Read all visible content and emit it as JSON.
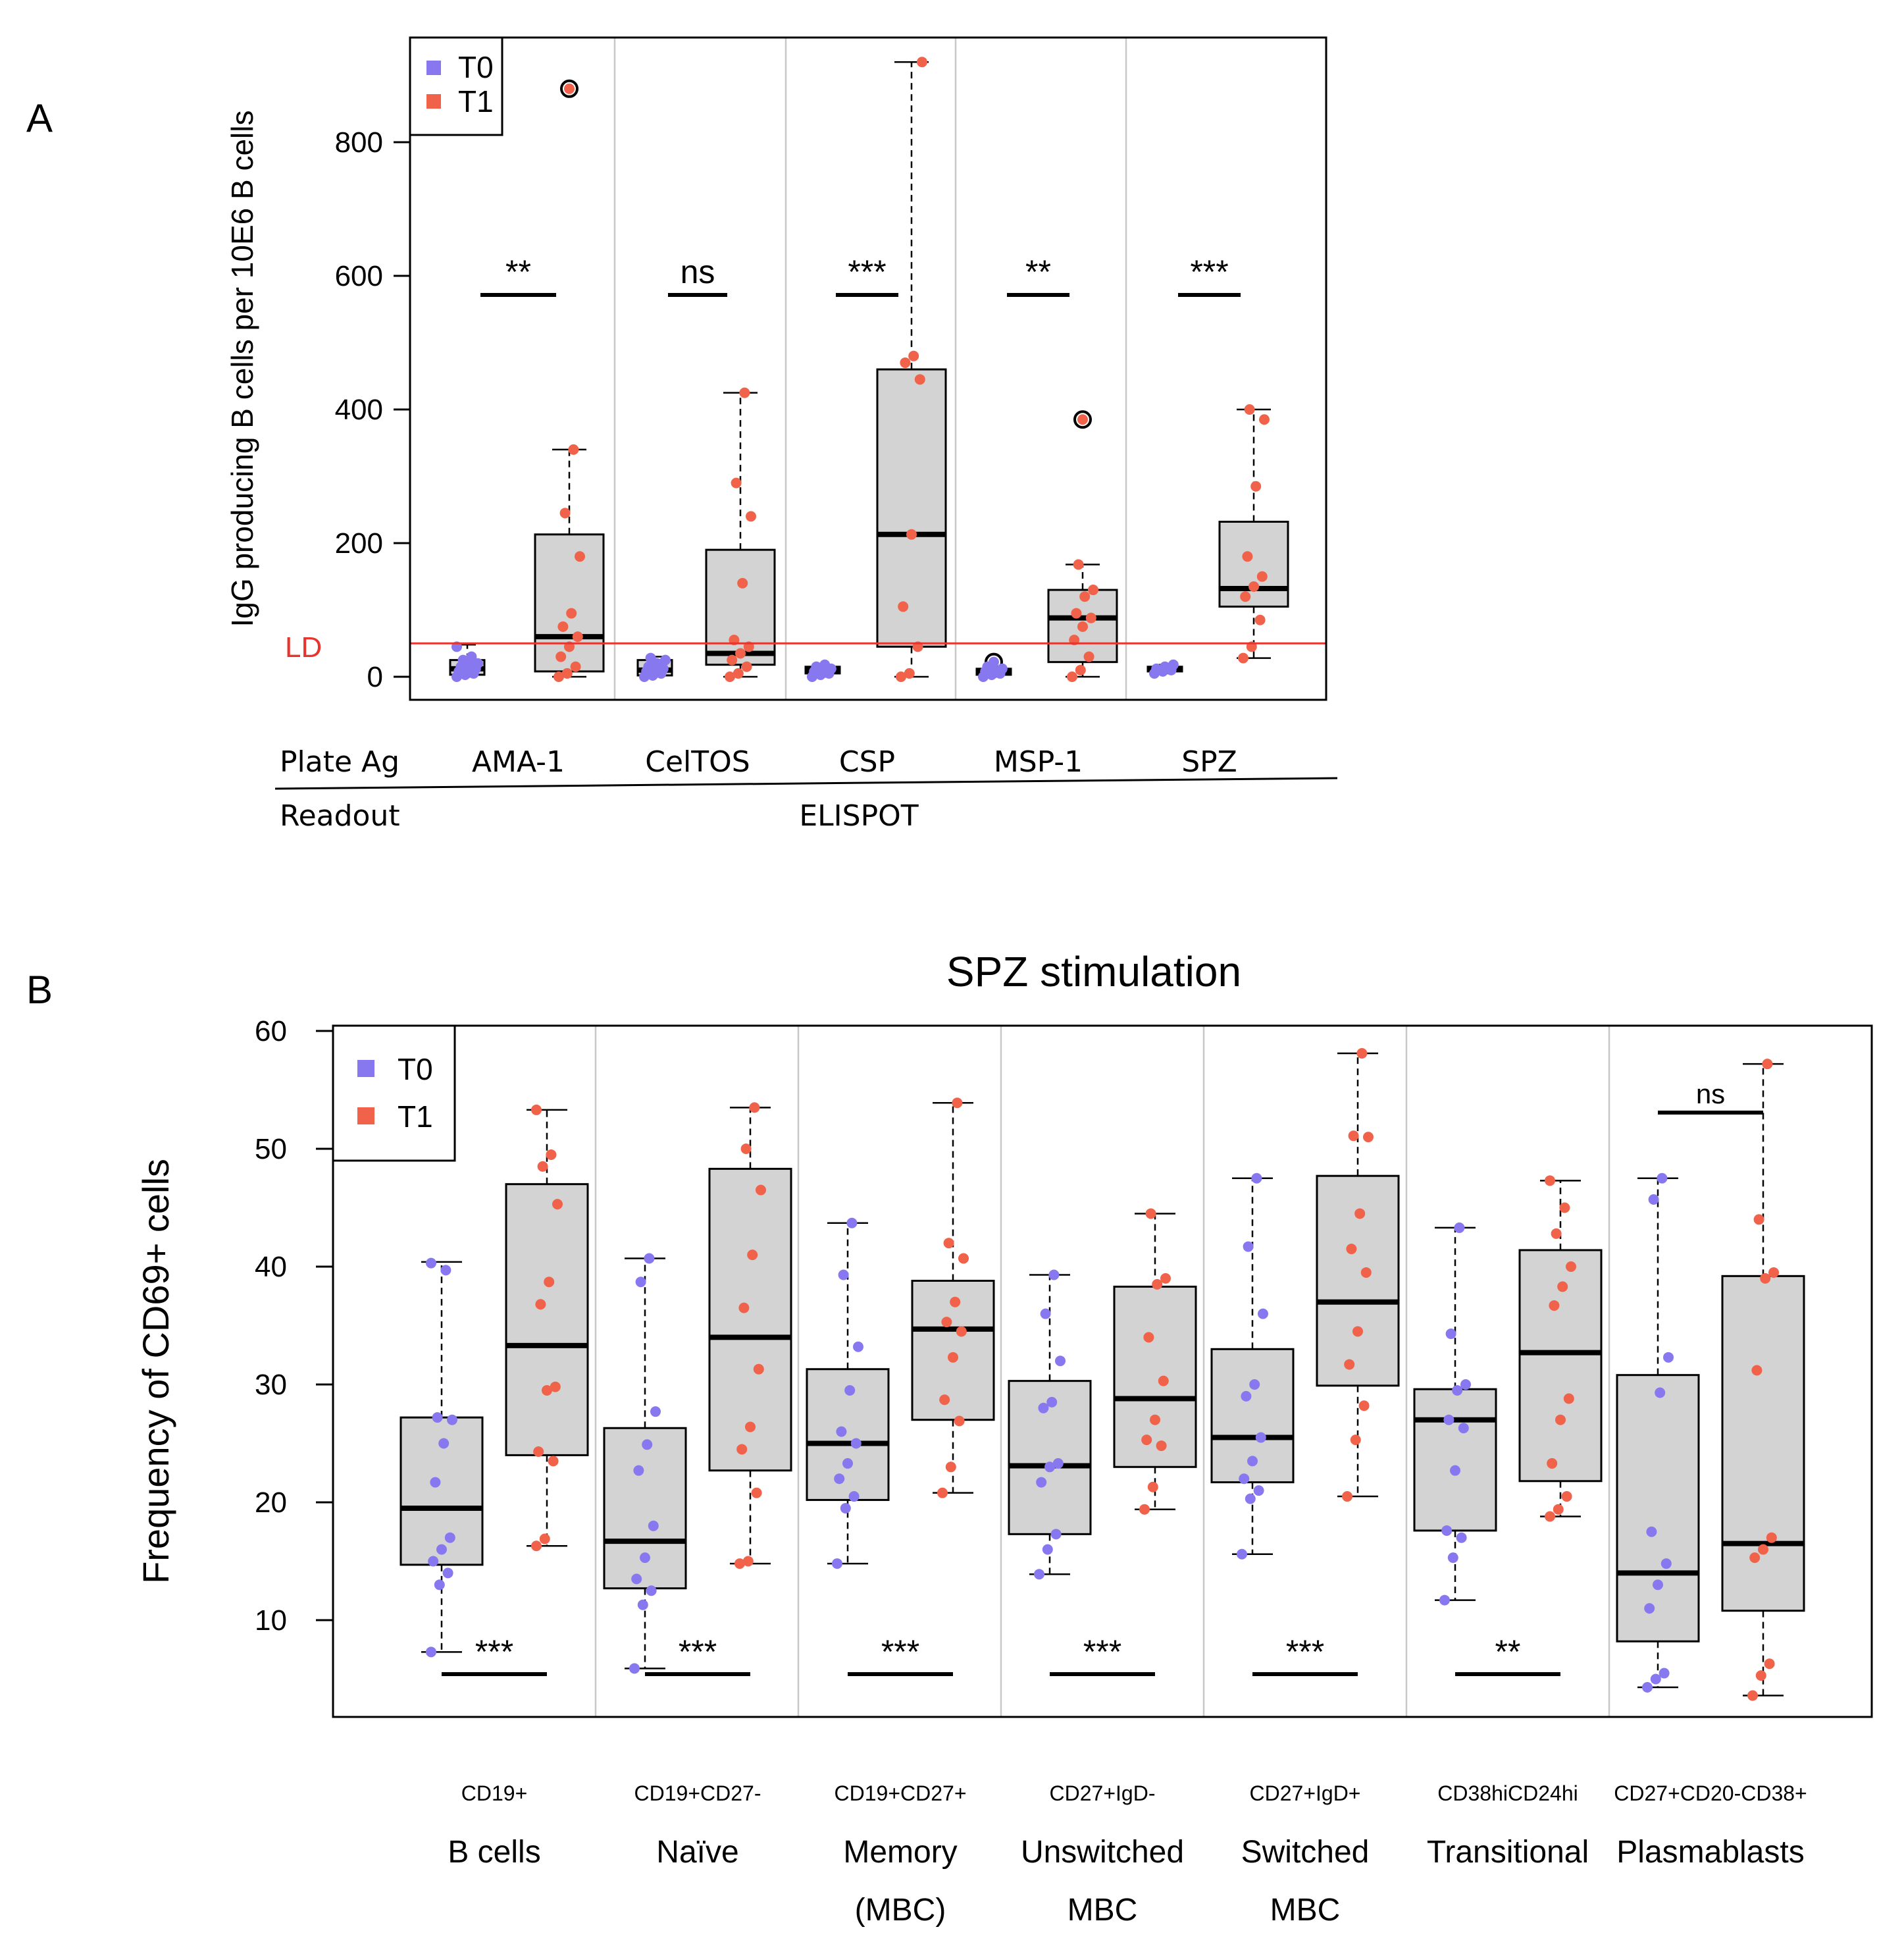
{
  "colors": {
    "t0": "#8878f0",
    "t1": "#f0624a",
    "box": "#d3d3d3",
    "ld_line": "#e8342c"
  },
  "chart_data": [
    {
      "type": "box",
      "panel_label": "A",
      "ylabel": "IgG producing B cells per 10E6 B cells",
      "ylim": [
        -35,
        960
      ],
      "yticks": [
        0,
        200,
        400,
        600,
        800
      ],
      "grid": false,
      "legend": {
        "position": "top-left",
        "entries": [
          "T0",
          "T1"
        ]
      },
      "ld": {
        "label": "LD",
        "value": 50
      },
      "row_labels": {
        "plate_ag": "Plate Ag",
        "readout": "Readout",
        "readout_value": "ELISPOT"
      },
      "groups": [
        {
          "label": "AMA-1",
          "sig": "**",
          "t0": {
            "q1": 3,
            "median": 12,
            "q3": 25,
            "whisk_lo": 0,
            "whisk_hi": 48,
            "points": [
              0,
              3,
              5,
              8,
              10,
              12,
              15,
              18,
              20,
              25,
              30,
              45
            ]
          },
          "t1": {
            "q1": 8,
            "median": 60,
            "q3": 213,
            "whisk_lo": 0,
            "whisk_hi": 340,
            "points": [
              0,
              5,
              15,
              30,
              45,
              60,
              75,
              95,
              180,
              245,
              340
            ],
            "outliers": [
              880
            ]
          }
        },
        {
          "label": "CelTOS",
          "sig": "ns",
          "t0": {
            "q1": 2,
            "median": 10,
            "q3": 25,
            "whisk_lo": 0,
            "whisk_hi": 30,
            "points": [
              0,
              2,
              5,
              8,
              10,
              12,
              15,
              20,
              25,
              28
            ]
          },
          "t1": {
            "q1": 18,
            "median": 35,
            "q3": 190,
            "whisk_lo": 0,
            "whisk_hi": 425,
            "points": [
              0,
              5,
              15,
              25,
              35,
              45,
              55,
              140,
              240,
              290,
              425
            ]
          }
        },
        {
          "label": "CSP",
          "sig": "***",
          "t0": {
            "q1": 5,
            "median": 10,
            "q3": 15,
            "whisk_lo": 0,
            "whisk_hi": 18,
            "points": [
              0,
              3,
              5,
              8,
              10,
              12,
              15,
              18
            ]
          },
          "t1": {
            "q1": 45,
            "median": 213,
            "q3": 460,
            "whisk_lo": 0,
            "whisk_hi": 920,
            "points": [
              0,
              5,
              45,
              105,
              213,
              445,
              470,
              480,
              920
            ]
          }
        },
        {
          "label": "MSP-1",
          "sig": "**",
          "t0": {
            "q1": 3,
            "median": 8,
            "q3": 12,
            "whisk_lo": 0,
            "whisk_hi": 15,
            "points": [
              0,
              3,
              5,
              8,
              10,
              12,
              15
            ],
            "outliers": [
              22
            ]
          },
          "t1": {
            "q1": 22,
            "median": 88,
            "q3": 130,
            "whisk_lo": 0,
            "whisk_hi": 168,
            "points": [
              0,
              10,
              30,
              55,
              75,
              88,
              95,
              120,
              130,
              168
            ],
            "outliers": [
              385
            ]
          }
        },
        {
          "label": "SPZ",
          "sig": "***",
          "t0": {
            "q1": 8,
            "median": 12,
            "q3": 15,
            "whisk_lo": 5,
            "whisk_hi": 18,
            "points": [
              5,
              8,
              10,
              12,
              15,
              18
            ]
          },
          "t1": {
            "q1": 105,
            "median": 132,
            "q3": 232,
            "whisk_lo": 28,
            "whisk_hi": 400,
            "points": [
              28,
              45,
              85,
              120,
              135,
              150,
              180,
              285,
              385,
              400
            ]
          }
        }
      ]
    },
    {
      "type": "box",
      "panel_label": "B",
      "title": "SPZ stimulation",
      "ylabel": "Frequency of CD69+ cells",
      "ylim": [
        2,
        60
      ],
      "yticks": [
        10,
        20,
        30,
        40,
        50,
        60
      ],
      "grid": false,
      "legend": {
        "position": "top-left",
        "entries": [
          "T0",
          "T1"
        ]
      },
      "groups": [
        {
          "marker": "CD19+",
          "label1": "B cells",
          "label2": "",
          "sig": "***",
          "sig_pos": "bottom",
          "t0": {
            "q1": 14.7,
            "median": 19.5,
            "q3": 27.2,
            "whisk_lo": 7.3,
            "whisk_hi": 40.4,
            "points": [
              7.3,
              13.0,
              14.0,
              15.0,
              16.0,
              17.0,
              21.7,
              25.0,
              27.0,
              27.2,
              39.7,
              40.3
            ]
          },
          "t1": {
            "q1": 24.0,
            "median": 33.3,
            "q3": 47.0,
            "whisk_lo": 16.3,
            "whisk_hi": 53.3,
            "points": [
              16.3,
              16.9,
              23.5,
              24.3,
              29.5,
              29.8,
              36.8,
              38.7,
              45.3,
              48.5,
              49.5,
              53.3
            ]
          }
        },
        {
          "marker": "CD19+CD27-",
          "label1": "Naïve",
          "label2": "",
          "sig": "***",
          "sig_pos": "bottom",
          "t0": {
            "q1": 12.7,
            "median": 16.7,
            "q3": 26.3,
            "whisk_lo": 5.9,
            "whisk_hi": 40.7,
            "points": [
              5.9,
              11.3,
              12.5,
              13.5,
              15.3,
              18.0,
              22.7,
              24.9,
              27.7,
              38.7,
              40.7
            ]
          },
          "t1": {
            "q1": 22.7,
            "median": 34.0,
            "q3": 48.3,
            "whisk_lo": 14.8,
            "whisk_hi": 53.5,
            "points": [
              14.8,
              15.0,
              20.8,
              24.5,
              26.4,
              31.3,
              36.5,
              41.0,
              46.5,
              50.0,
              53.5
            ]
          }
        },
        {
          "marker": "CD19+CD27+",
          "label1": "Memory",
          "label2": "(MBC)",
          "sig": "***",
          "sig_pos": "bottom",
          "t0": {
            "q1": 20.2,
            "median": 25.0,
            "q3": 31.3,
            "whisk_lo": 14.8,
            "whisk_hi": 43.7,
            "points": [
              14.8,
              19.5,
              20.5,
              22.0,
              23.3,
              25.0,
              26.0,
              29.5,
              33.2,
              39.3,
              43.7
            ]
          },
          "t1": {
            "q1": 27.0,
            "median": 34.7,
            "q3": 38.8,
            "whisk_lo": 20.8,
            "whisk_hi": 53.9,
            "points": [
              20.8,
              23.0,
              26.9,
              28.7,
              32.3,
              34.5,
              35.3,
              37.0,
              40.7,
              42.0,
              53.9
            ]
          }
        },
        {
          "marker": "CD27+IgD-",
          "label1": "Unswitched",
          "label2": "MBC",
          "sig": "***",
          "sig_pos": "bottom",
          "t0": {
            "q1": 17.3,
            "median": 23.1,
            "q3": 30.3,
            "whisk_lo": 13.9,
            "whisk_hi": 39.3,
            "points": [
              13.9,
              16.0,
              17.3,
              21.7,
              23.0,
              23.3,
              28.0,
              28.5,
              32.0,
              36.0,
              39.3
            ]
          },
          "t1": {
            "q1": 23.0,
            "median": 28.8,
            "q3": 38.3,
            "whisk_lo": 19.4,
            "whisk_hi": 44.5,
            "points": [
              19.4,
              21.3,
              24.8,
              25.3,
              27.0,
              30.3,
              34.0,
              38.5,
              39.0,
              44.5
            ]
          }
        },
        {
          "marker": "CD27+IgD+",
          "label1": "Switched",
          "label2": "MBC",
          "sig": "***",
          "sig_pos": "bottom",
          "t0": {
            "q1": 21.7,
            "median": 25.5,
            "q3": 33.0,
            "whisk_lo": 15.6,
            "whisk_hi": 47.5,
            "points": [
              15.6,
              20.3,
              21.0,
              22.0,
              23.5,
              25.5,
              29.0,
              30.0,
              36.0,
              41.7,
              47.5
            ]
          },
          "t1": {
            "q1": 29.9,
            "median": 37.0,
            "q3": 47.7,
            "whisk_lo": 20.5,
            "whisk_hi": 58.1,
            "points": [
              20.5,
              25.3,
              28.2,
              31.7,
              34.5,
              39.5,
              41.5,
              44.5,
              51.0,
              51.1,
              58.1
            ]
          }
        },
        {
          "marker": "CD38hiCD24hi",
          "label1": "Transitional",
          "label2": "",
          "sig": "**",
          "sig_pos": "bottom",
          "t0": {
            "q1": 17.6,
            "median": 27.0,
            "q3": 29.6,
            "whisk_lo": 11.7,
            "whisk_hi": 43.3,
            "points": [
              11.7,
              15.3,
              17.0,
              17.6,
              22.7,
              26.3,
              27.0,
              29.5,
              30.0,
              34.3,
              43.3
            ]
          },
          "t1": {
            "q1": 21.8,
            "median": 32.7,
            "q3": 41.4,
            "whisk_lo": 18.8,
            "whisk_hi": 47.3,
            "points": [
              18.8,
              19.4,
              20.5,
              23.3,
              27.0,
              28.8,
              36.7,
              38.3,
              40.0,
              42.8,
              45.0,
              47.3
            ]
          }
        },
        {
          "marker": "CD27+CD20-CD38+",
          "label1": "Plasmablasts",
          "label2": "",
          "sig": "ns",
          "sig_pos": "top",
          "t0": {
            "q1": 8.2,
            "median": 14.0,
            "q3": 30.8,
            "whisk_lo": 4.3,
            "whisk_hi": 47.5,
            "points": [
              4.3,
              5.0,
              5.5,
              11.0,
              13.0,
              14.8,
              17.5,
              29.3,
              32.3,
              45.7,
              47.5
            ]
          },
          "t1": {
            "q1": 10.8,
            "median": 16.5,
            "q3": 39.2,
            "whisk_lo": 3.6,
            "whisk_hi": 57.2,
            "points": [
              3.6,
              5.3,
              6.3,
              15.3,
              16.0,
              17.0,
              31.2,
              39.0,
              39.5,
              44.0,
              57.2
            ]
          }
        }
      ]
    }
  ]
}
